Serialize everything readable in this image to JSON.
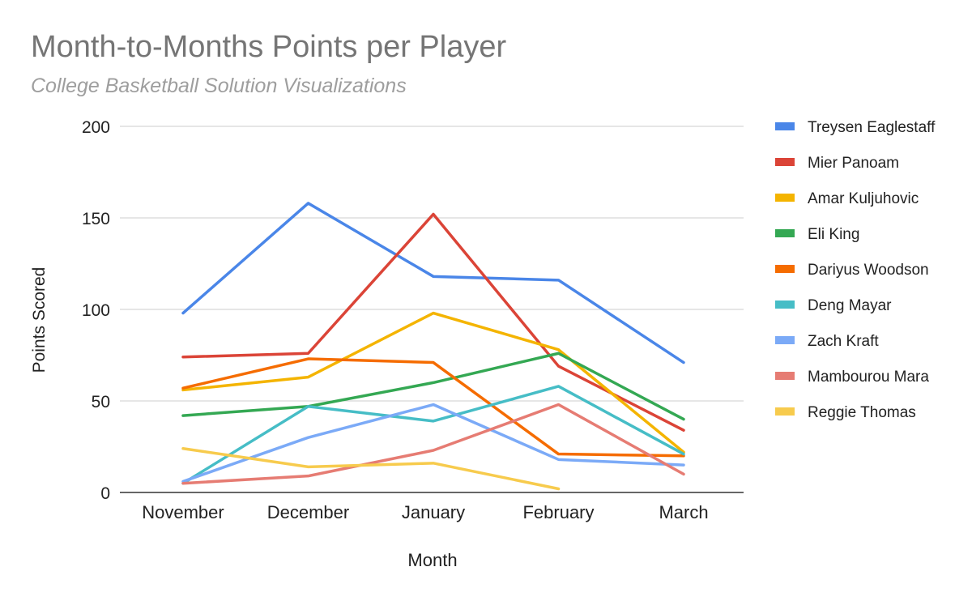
{
  "chart_data": {
    "type": "line",
    "title": "Month-to-Months Points per Player",
    "subtitle": "College Basketball Solution Visualizations",
    "xlabel": "Month",
    "ylabel": "Points Scored",
    "categories": [
      "November",
      "December",
      "January",
      "February",
      "March"
    ],
    "ylim": [
      0,
      200
    ],
    "yticks": [
      0,
      50,
      100,
      150,
      200
    ],
    "grid": true,
    "legend_position": "right",
    "series": [
      {
        "name": "Treysen Eaglestaff",
        "color": "#4a86e8",
        "values": [
          98,
          158,
          118,
          116,
          71
        ]
      },
      {
        "name": "Mier Panoam",
        "color": "#db4437",
        "values": [
          74,
          76,
          152,
          69,
          34
        ]
      },
      {
        "name": "Amar Kuljuhovic",
        "color": "#f4b400",
        "values": [
          56,
          63,
          98,
          78,
          22
        ]
      },
      {
        "name": "Eli King",
        "color": "#34a853",
        "values": [
          42,
          47,
          60,
          76,
          40
        ]
      },
      {
        "name": "Dariyus Woodson",
        "color": "#f56c00",
        "values": [
          57,
          73,
          71,
          21,
          20
        ]
      },
      {
        "name": "Deng Mayar",
        "color": "#46bdc6",
        "values": [
          5,
          47,
          39,
          58,
          21
        ]
      },
      {
        "name": "Zach Kraft",
        "color": "#7baaf7",
        "values": [
          6,
          30,
          48,
          18,
          15
        ]
      },
      {
        "name": "Mambourou Mara",
        "color": "#e67c73",
        "values": [
          5,
          9,
          23,
          48,
          10
        ]
      },
      {
        "name": "Reggie Thomas",
        "color": "#f7cb4d",
        "values": [
          24,
          14,
          16,
          2,
          null
        ]
      }
    ]
  }
}
